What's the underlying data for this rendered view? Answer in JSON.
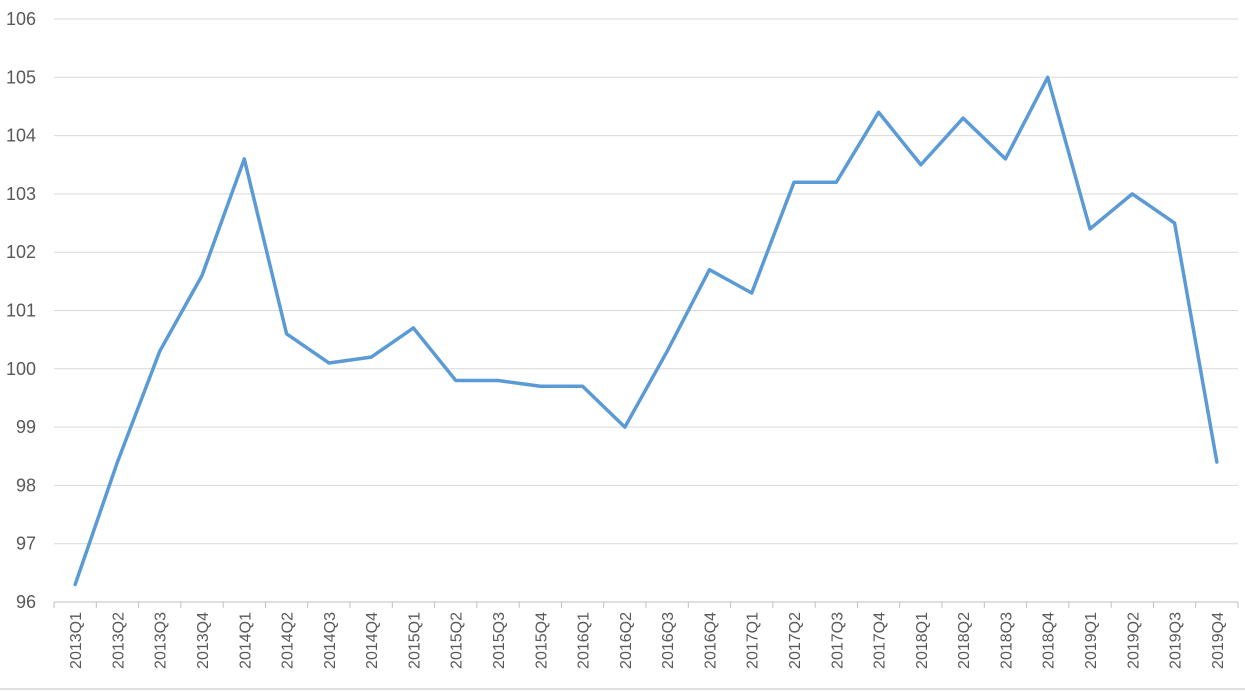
{
  "chart_data": {
    "type": "line",
    "title": "",
    "xlabel": "",
    "ylabel": "",
    "ylim": [
      96,
      106
    ],
    "yticks": [
      96,
      97,
      98,
      99,
      100,
      101,
      102,
      103,
      104,
      105,
      106
    ],
    "grid": true,
    "legend": "none",
    "categories": [
      "2013Q1",
      "2013Q2",
      "2013Q3",
      "2013Q4",
      "2014Q1",
      "2014Q2",
      "2014Q3",
      "2014Q4",
      "2015Q1",
      "2015Q2",
      "2015Q3",
      "2015Q4",
      "2016Q1",
      "2016Q2",
      "2016Q3",
      "2016Q4",
      "2017Q1",
      "2017Q2",
      "2017Q3",
      "2017Q4",
      "2018Q1",
      "2018Q2",
      "2018Q3",
      "2018Q4",
      "2019Q1",
      "2019Q2",
      "2019Q3",
      "2019Q4"
    ],
    "series": [
      {
        "color": "#5b9bd5",
        "values": [
          96.3,
          98.4,
          100.3,
          101.6,
          103.6,
          100.6,
          100.1,
          100.2,
          100.7,
          99.8,
          99.8,
          99.7,
          99.7,
          99.0,
          100.3,
          101.7,
          101.3,
          103.2,
          103.2,
          104.4,
          103.5,
          104.3,
          103.6,
          105.0,
          102.4,
          103.0,
          102.5,
          98.4
        ]
      }
    ]
  }
}
